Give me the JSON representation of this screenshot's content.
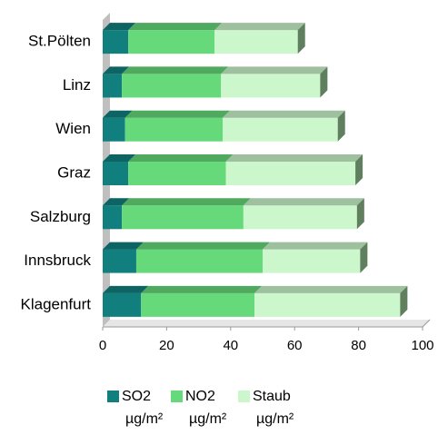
{
  "chart_data": {
    "type": "bar",
    "orientation": "horizontal",
    "stacked": true,
    "three_d": true,
    "categories": [
      "St.Pölten",
      "Linz",
      "Wien",
      "Graz",
      "Salzburg",
      "Innsbruck",
      "Klagenfurt"
    ],
    "series": [
      {
        "name": "SO2",
        "unit": "µg/m²",
        "color": "#127f7f",
        "values": [
          8,
          6,
          7,
          8,
          6,
          10.5,
          12
        ]
      },
      {
        "name": "NO2",
        "unit": "µg/m²",
        "color": "#66d97a",
        "values": [
          27,
          31,
          30.5,
          30.5,
          38,
          39.5,
          35.5
        ]
      },
      {
        "name": "Staub",
        "unit": "µg/m²",
        "color": "#ccf7cc",
        "values": [
          26,
          31,
          36,
          40.5,
          35.5,
          30.5,
          45.5
        ]
      }
    ],
    "xlim": [
      0,
      100
    ],
    "xticks": [
      0,
      20,
      40,
      60,
      80,
      100
    ],
    "legend": "bottom"
  }
}
